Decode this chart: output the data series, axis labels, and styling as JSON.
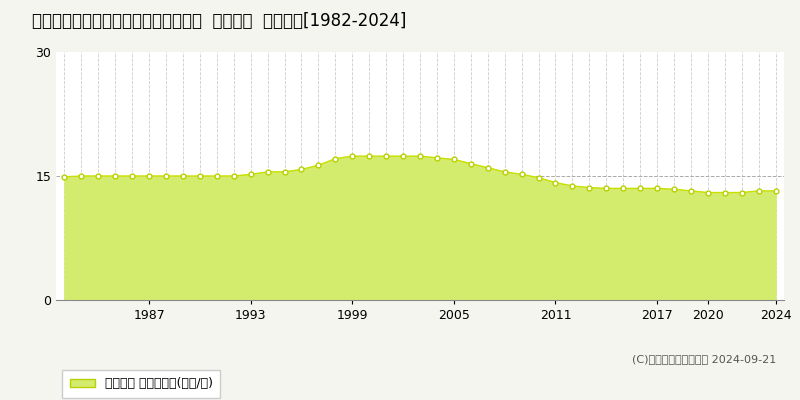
{
  "title": "青森県八戸市大字湊町字赤坂１６番７  基準地価  地価推移[1982-2024]",
  "years": [
    1982,
    1983,
    1984,
    1985,
    1986,
    1987,
    1988,
    1989,
    1990,
    1991,
    1992,
    1993,
    1994,
    1995,
    1996,
    1997,
    1998,
    1999,
    2000,
    2001,
    2002,
    2003,
    2004,
    2005,
    2006,
    2007,
    2008,
    2009,
    2010,
    2011,
    2012,
    2013,
    2014,
    2015,
    2016,
    2017,
    2018,
    2019,
    2020,
    2021,
    2022,
    2023,
    2024
  ],
  "values": [
    14.9,
    15.0,
    15.0,
    15.0,
    15.0,
    15.0,
    15.0,
    15.0,
    15.0,
    15.0,
    15.0,
    15.2,
    15.5,
    15.5,
    15.8,
    16.3,
    17.1,
    17.4,
    17.4,
    17.4,
    17.4,
    17.4,
    17.2,
    17.0,
    16.5,
    16.0,
    15.5,
    15.2,
    14.8,
    14.2,
    13.8,
    13.6,
    13.5,
    13.5,
    13.5,
    13.5,
    13.4,
    13.2,
    13.0,
    13.0,
    13.0,
    13.2,
    13.2
  ],
  "line_color": "#c8e000",
  "fill_color": "#d4ec6e",
  "marker_color": "#b8d000",
  "marker_face": "#ffffff",
  "bg_color": "#f5f5f0",
  "plot_bg_color": "#ffffff",
  "grid_color": "#cccccc",
  "hline_color": "#aaaaaa",
  "ylim": [
    0,
    30
  ],
  "yticks": [
    0,
    15,
    30
  ],
  "xtick_labels": [
    "1987",
    "1993",
    "1999",
    "2005",
    "2011",
    "2017",
    "2020",
    "2024"
  ],
  "xtick_years": [
    1987,
    1993,
    1999,
    2005,
    2011,
    2017,
    2020,
    2024
  ],
  "legend_label": "基準地価 平均坪単価(万円/坪)",
  "copyright_text": "(C)土地価格ドットコム 2024-09-21",
  "title_fontsize": 12,
  "tick_fontsize": 9,
  "legend_fontsize": 9
}
